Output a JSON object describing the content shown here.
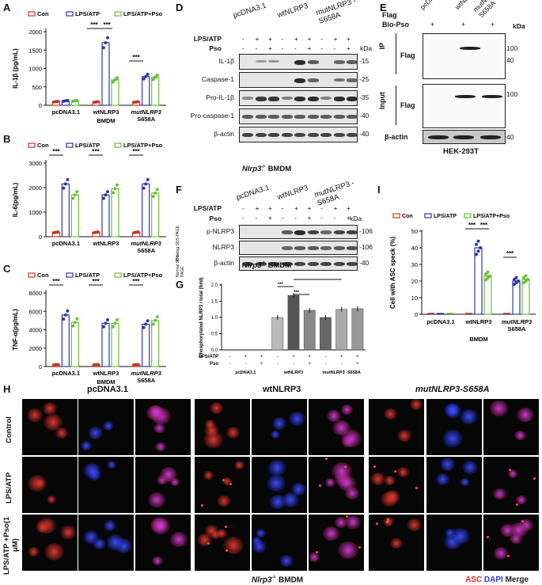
{
  "panels": {
    "A": {
      "letter": "A"
    },
    "B": {
      "letter": "B"
    },
    "C": {
      "letter": "C"
    },
    "D": {
      "letter": "D"
    },
    "E": {
      "letter": "E"
    },
    "F": {
      "letter": "F"
    },
    "G": {
      "letter": "G"
    },
    "H": {
      "letter": "H"
    },
    "I": {
      "letter": "I"
    }
  },
  "legend": {
    "con": "Con",
    "lps": "LPS/ATP",
    "pso": "LPS/ATP+Pso"
  },
  "colors": {
    "con": "#c0392b",
    "lps": "#2e3a9f",
    "pso": "#6bbf3a"
  },
  "groups": [
    "pcDNA3.1",
    "wtNLRP3",
    "mutNLRP3 S658A"
  ],
  "bmdm": "BMDM",
  "sig": "***",
  "chart_data": [
    {
      "id": "A",
      "type": "bar",
      "ylabel": "IL-1β (pg/mL)",
      "ylim": [
        0,
        2000
      ],
      "yticks": [
        0,
        500,
        1000,
        1500,
        2000
      ],
      "categories": [
        "pcDNA3.1",
        "wtNLRP3",
        "mutNLRP3 S658A"
      ],
      "series": [
        {
          "name": "Con",
          "values": [
            100,
            90,
            90
          ]
        },
        {
          "name": "LPS/ATP",
          "values": [
            120,
            1700,
            780
          ]
        },
        {
          "name": "LPS/ATP+Pso",
          "values": [
            120,
            690,
            760
          ]
        }
      ]
    },
    {
      "id": "B",
      "type": "bar",
      "ylabel": "IL-6(pg/mL)",
      "ylim": [
        0,
        3000
      ],
      "yticks": [
        0,
        1000,
        2000,
        3000
      ],
      "categories": [
        "pcDNA3.1",
        "wtNLRP3",
        "mutNLRP3 S658A"
      ],
      "series": [
        {
          "name": "Con",
          "values": [
            180,
            180,
            180
          ]
        },
        {
          "name": "LPS/ATP",
          "values": [
            2150,
            1700,
            2150
          ]
        },
        {
          "name": "LPS/ATP+Pso",
          "values": [
            1700,
            1950,
            1780
          ]
        }
      ]
    },
    {
      "id": "C",
      "type": "bar",
      "ylabel": "TNF-α(pg/mL)",
      "ylim": [
        0,
        8000
      ],
      "yticks": [
        0,
        2000,
        4000,
        6000,
        8000
      ],
      "categories": [
        "pcDNA3.1",
        "wtNLRP3",
        "mutNLRP3 S658A"
      ],
      "series": [
        {
          "name": "Con",
          "values": [
            200,
            200,
            200
          ]
        },
        {
          "name": "LPS/ATP",
          "values": [
            5600,
            4700,
            4600
          ]
        },
        {
          "name": "LPS/ATP+Pso",
          "values": [
            4800,
            4700,
            5000
          ]
        }
      ]
    },
    {
      "id": "G",
      "type": "bar",
      "ylabel": "Phosphorylated NLRP3 / total (fold)",
      "ylim": [
        0,
        2.0
      ],
      "yticks": [
        0,
        0.5,
        1.0,
        1.5,
        2.0
      ],
      "categories": [
        "1",
        "2",
        "3",
        "4",
        "5",
        "6",
        "7",
        "8",
        "9"
      ],
      "values": [
        0,
        0,
        0,
        1.0,
        1.68,
        1.22,
        1.0,
        1.25,
        1.27
      ]
    },
    {
      "id": "I",
      "type": "scatter-bar",
      "ylabel": "Cell with ASC speck (%)",
      "ylim": [
        0,
        50
      ],
      "yticks": [
        0,
        10,
        20,
        30,
        40,
        50
      ],
      "categories": [
        "pcDNA3.1",
        "wtNLRP3",
        "mutNLRP3 S658A"
      ],
      "series": [
        {
          "name": "Con",
          "values": [
            0,
            0,
            0
          ]
        },
        {
          "name": "LPS/ATP",
          "values": [
            0,
            40,
            20
          ]
        },
        {
          "name": "LPS/ATP+Pso",
          "values": [
            0,
            23,
            21
          ]
        }
      ]
    }
  ],
  "panelD": {
    "lanes_header": [
      "pcDNA3.1",
      "wtNLRP3",
      "mutNLRP3 -S658A"
    ],
    "lps_label": "LPS/ATP",
    "pso_label": "Pso",
    "kda": "kDa",
    "lps": [
      "-",
      "+",
      "+",
      "-",
      "+",
      "+",
      "-",
      "+",
      "+"
    ],
    "pso": [
      "-",
      "-",
      "+",
      "-",
      "-",
      "+",
      "-",
      "-",
      "+"
    ],
    "rows": [
      {
        "label": "IL-1β",
        "kda": "15"
      },
      {
        "label": "Caspase-1",
        "kda": "25"
      },
      {
        "label": "Pro-IL-1β",
        "kda": "35"
      },
      {
        "label": "Pro-caspase-1",
        "kda": "40"
      },
      {
        "label": "β-actin",
        "kda": "40"
      }
    ],
    "footer": "Nlrp3 -/- BMDM"
  },
  "panelE": {
    "lanes_header": [
      "pcDNA3.1",
      "wtNLRP3",
      "mutNLRP3 -S658A"
    ],
    "flag_label": "Flag",
    "bio_label": "Bio-Pso",
    "kda": "kDa",
    "bio": [
      "+",
      "+",
      "+"
    ],
    "ip": "IP",
    "input": "Input",
    "flag": "Flag",
    "actin": "β-actin",
    "kda_ip": [
      "100",
      "40"
    ],
    "kda_input": "100",
    "kda_actin": "40",
    "footer": "HEK-293T"
  },
  "panelF": {
    "lanes_header": [
      "pcDNA3.1",
      "wtNLRP3",
      "mutNLRP3 -S658A"
    ],
    "lps_label": "LPS/ATP",
    "pso_label": "Pso",
    "kda": "kDa",
    "lps": [
      "-",
      "+",
      "+",
      "-",
      "+",
      "+",
      "-",
      "+",
      "+"
    ],
    "pso": [
      "-",
      "-",
      "+",
      "-",
      "-",
      "+",
      "-",
      "-",
      "+"
    ],
    "side1": "Phostag SDS-PAGE",
    "side2": "Normal SDS-PAGE",
    "rows": [
      {
        "label": "p-NLRP3",
        "kda": "106"
      },
      {
        "label": "NLRP3",
        "kda": "106"
      },
      {
        "label": "β-actin",
        "kda": "40"
      }
    ],
    "footer": "Nlrp3 -/- BMDM"
  },
  "panelG": {
    "lps_label": "LPS/ATP",
    "pso_label": "Pso",
    "lps": [
      "-",
      "+",
      "+",
      "-",
      "+",
      "+",
      "-",
      "+",
      "+"
    ],
    "pso": [
      "-",
      "-",
      "+",
      "-",
      "-",
      "+",
      "-",
      "-",
      "+"
    ],
    "groups": [
      "pcDNA3.1",
      "wtNLRP3",
      "mutNLRP3 -S658A"
    ]
  },
  "panelH": {
    "col_groups": [
      "pcDNA3.1",
      "wtNLRP3",
      "mutNLRP3-S658A"
    ],
    "rows": [
      "Control",
      "LPS/ATP",
      "LPS/ATP +Pso(1 μM)"
    ],
    "footer": "Nlrp3 -/- BMDM",
    "asc": "ASC",
    "dapi": "DAPI",
    "merge": "Merge"
  }
}
